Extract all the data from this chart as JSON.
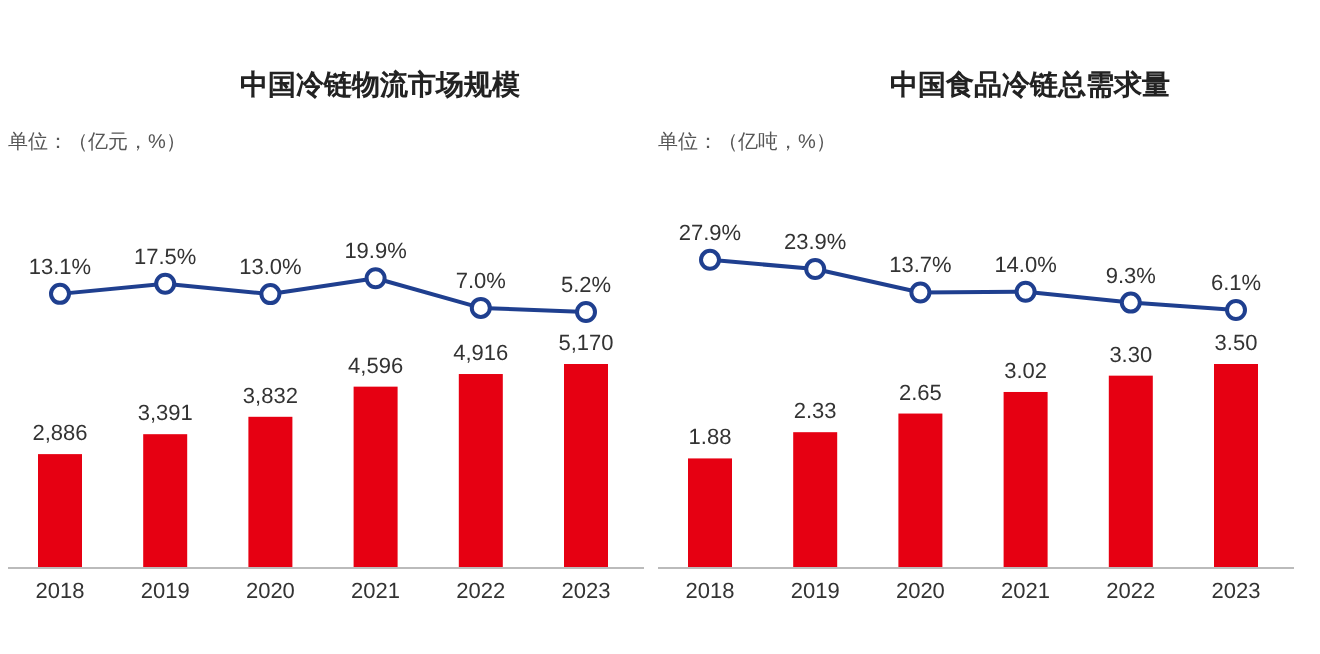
{
  "chart_data": [
    {
      "type": "line",
      "title": "中国冷链物流市场规模",
      "annotations": [
        "单位：（亿元，%）"
      ],
      "categories": [
        "2018",
        "2019",
        "2020",
        "2021",
        "2022",
        "2023"
      ],
      "tick_labels": false,
      "series": [
        {
          "color": "#1f3f8f",
          "marker": "circle",
          "values": [
            13.1,
            17.5,
            13.0,
            19.9,
            7.0,
            5.2
          ],
          "value_labels": [
            "13.1%",
            "17.5%",
            "13.0%",
            "19.9%",
            "7.0%",
            "5.2%"
          ]
        }
      ]
    },
    {
      "type": "bar",
      "categories": [
        "2018",
        "2019",
        "2020",
        "2021",
        "2022",
        "2023"
      ],
      "series": [
        {
          "color": "#e60012",
          "values": [
            2886,
            3391,
            3832,
            4596,
            4916,
            5170
          ],
          "value_labels": [
            "2,886",
            "3,391",
            "3,832",
            "4,596",
            "4,916",
            "5,170"
          ]
        }
      ]
    },
    {
      "type": "line",
      "title": "中国食品冷链总需求量",
      "annotations": [
        "单位：（亿吨，%）"
      ],
      "categories": [
        "2018",
        "2019",
        "2020",
        "2021",
        "2022",
        "2023"
      ],
      "tick_labels": false,
      "series": [
        {
          "color": "#1f3f8f",
          "marker": "circle",
          "values": [
            27.9,
            23.9,
            13.7,
            14.0,
            9.3,
            6.1
          ],
          "value_labels": [
            "27.9%",
            "23.9%",
            "13.7%",
            "14.0%",
            "9.3%",
            "6.1%"
          ]
        }
      ]
    },
    {
      "type": "bar",
      "categories": [
        "2018",
        "2019",
        "2020",
        "2021",
        "2022",
        "2023"
      ],
      "series": [
        {
          "color": "#e60012",
          "values": [
            1.88,
            2.33,
            2.65,
            3.02,
            3.3,
            3.5
          ],
          "value_labels": [
            "1.88",
            "2.33",
            "2.65",
            "3.02",
            "3.30",
            "3.50"
          ]
        }
      ]
    }
  ]
}
